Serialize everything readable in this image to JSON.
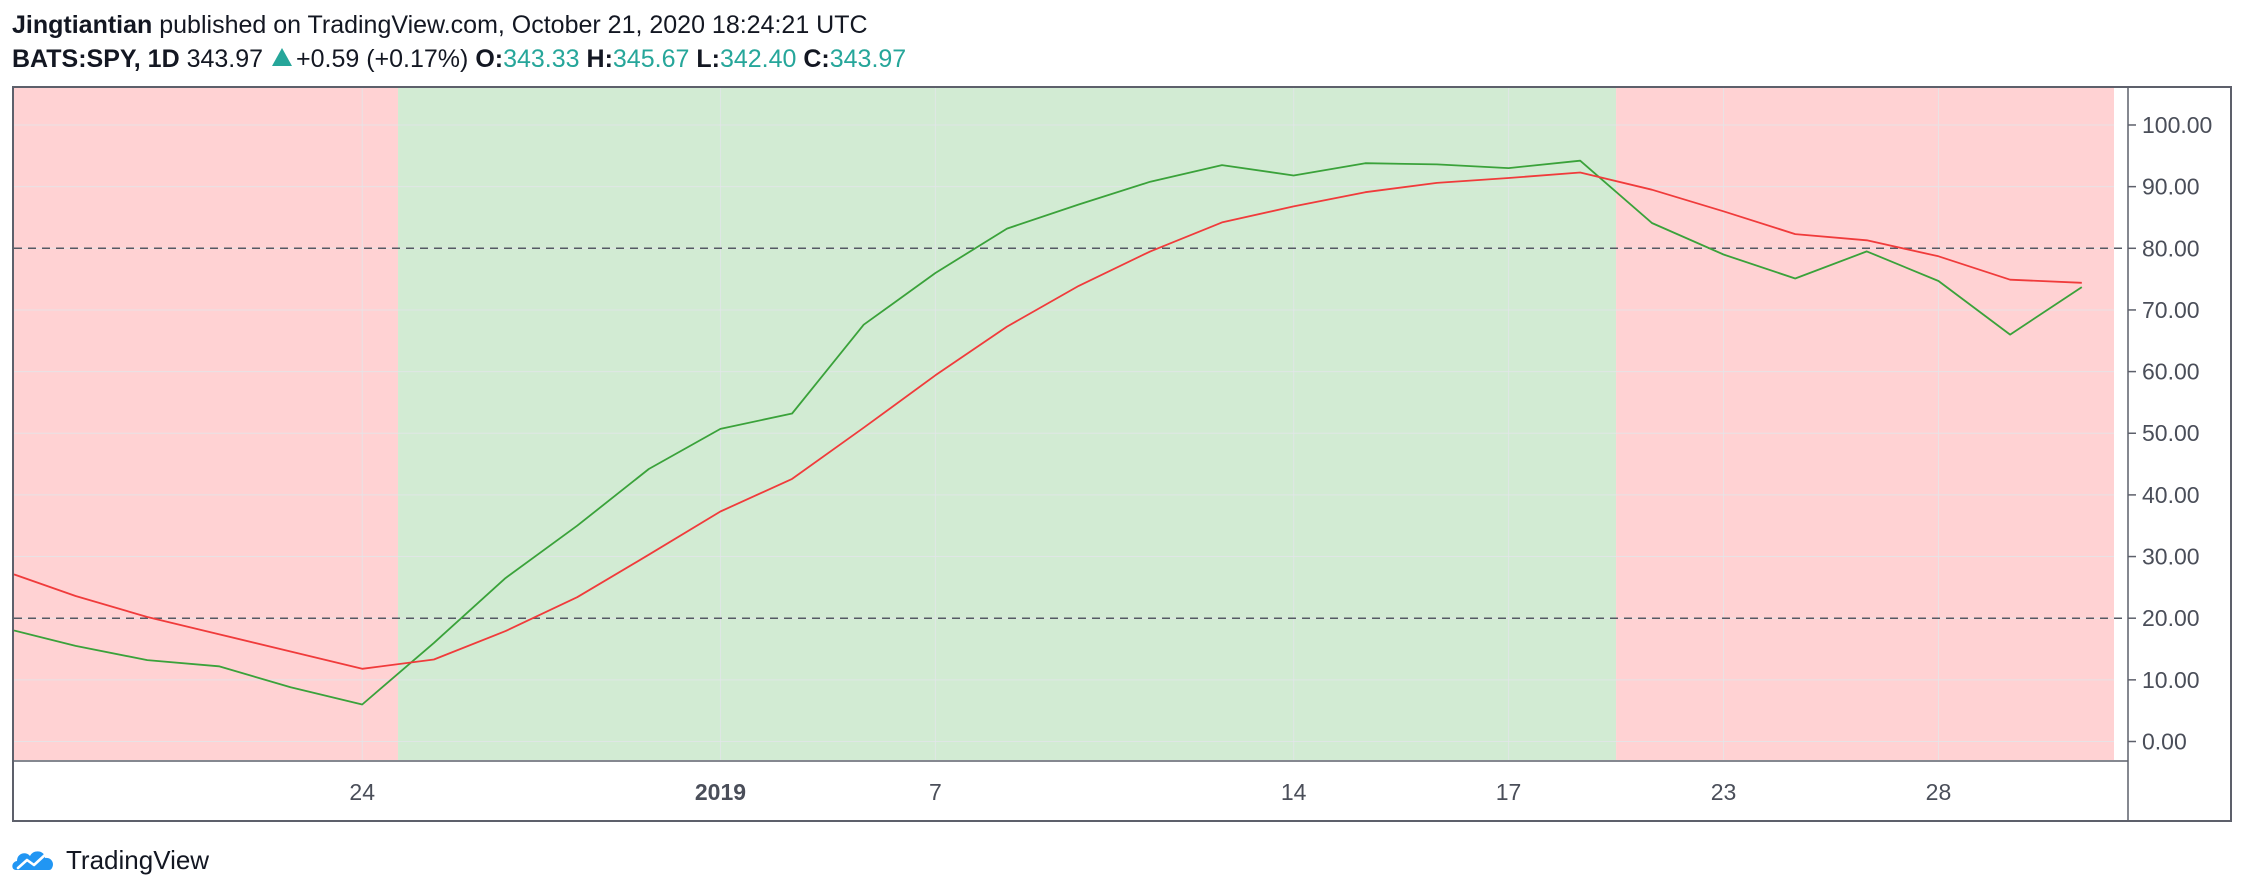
{
  "header": {
    "author": "Jingtiantian",
    "publish_text": "published on TradingView.com, October 21, 2020 18:24:21 UTC",
    "symbol": "BATS:SPY, 1D",
    "price": "343.97",
    "change": "+0.59 (+0.17%)",
    "open_label": "O:",
    "open_value": "343.33",
    "high_label": "H:",
    "high_value": "345.67",
    "low_label": "L:",
    "low_value": "342.40",
    "close_label": "C:",
    "close_value": "343.97"
  },
  "footer": {
    "brand": "TradingView"
  },
  "colors": {
    "red_zone": "#ffd2d3",
    "green_zone": "#d2ebd3",
    "red_line": "#f03b3b",
    "green_line": "#3aa23a",
    "grid": "#e3e6ea",
    "dash": "#555a64",
    "axis_text": "#4a4e59",
    "teal": "#26a69a"
  },
  "chart_data": {
    "type": "line",
    "ylim": [
      -3,
      106
    ],
    "yticks": [
      0,
      10,
      20,
      30,
      40,
      50,
      60,
      70,
      80,
      90,
      100
    ],
    "ytick_labels": [
      "0.00",
      "10.00",
      "20.00",
      "30.00",
      "40.00",
      "50.00",
      "60.00",
      "70.00",
      "80.00",
      "90.00",
      "100.00"
    ],
    "x_index_range": [
      -4.86,
      24.45
    ],
    "xticks": [
      {
        "index": 0,
        "label": "24",
        "bold": false
      },
      {
        "index": 5,
        "label": "2019",
        "bold": true
      },
      {
        "index": 8,
        "label": "7",
        "bold": false
      },
      {
        "index": 13,
        "label": "14",
        "bold": false
      },
      {
        "index": 16,
        "label": "17",
        "bold": false
      },
      {
        "index": 19,
        "label": "23",
        "bold": false
      },
      {
        "index": 22,
        "label": "28",
        "bold": false
      }
    ],
    "reference_lines": [
      80,
      20
    ],
    "zones": [
      {
        "from": -4.86,
        "to": 0.5,
        "zone": "red"
      },
      {
        "from": 0.5,
        "to": 17.5,
        "zone": "green"
      },
      {
        "from": 17.5,
        "to": 24.45,
        "zone": "red"
      }
    ],
    "series": [
      {
        "color_key": "green",
        "x": [
          -4.86,
          -4,
          -3,
          -2,
          -1,
          0,
          1,
          2,
          3,
          4,
          5,
          6,
          7,
          8,
          9,
          10,
          11,
          12,
          13,
          14,
          15,
          16,
          17,
          18,
          19,
          20,
          21,
          22,
          23,
          24
        ],
        "values": [
          18.0,
          15.5,
          13.2,
          12.2,
          8.8,
          6.0,
          16.0,
          26.5,
          35.0,
          44.2,
          50.7,
          53.2,
          67.6,
          76.0,
          83.2,
          87.1,
          90.8,
          93.5,
          91.8,
          93.8,
          93.6,
          93.0,
          94.2,
          84.1,
          79.0,
          75.1,
          79.5,
          74.7,
          66.0,
          73.7
        ]
      },
      {
        "color_key": "red",
        "x": [
          -4.86,
          -4,
          -3,
          -2,
          -1,
          0,
          1,
          2,
          3,
          4,
          5,
          6,
          7,
          8,
          9,
          10,
          11,
          12,
          13,
          14,
          15,
          16,
          17,
          18,
          19,
          20,
          21,
          22,
          23,
          24
        ],
        "values": [
          27.1,
          23.6,
          20.2,
          17.4,
          14.6,
          11.8,
          13.3,
          17.9,
          23.4,
          30.3,
          37.3,
          42.6,
          50.9,
          59.4,
          67.3,
          73.9,
          79.5,
          84.2,
          86.8,
          89.1,
          90.6,
          91.4,
          92.3,
          89.5,
          86.0,
          82.3,
          81.3,
          78.7,
          74.9,
          74.4
        ]
      }
    ]
  }
}
